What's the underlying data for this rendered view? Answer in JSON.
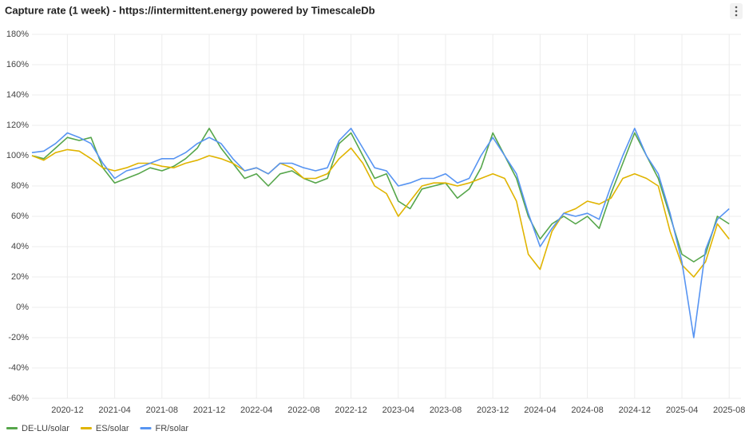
{
  "chart_data": {
    "type": "line",
    "title": "Capture rate (1 week) - https://intermittent.energy powered by TimescaleDb",
    "x": [
      "2020-09",
      "2020-10",
      "2020-11",
      "2020-12",
      "2021-01",
      "2021-02",
      "2021-03",
      "2021-04",
      "2021-05",
      "2021-06",
      "2021-07",
      "2021-08",
      "2021-09",
      "2021-10",
      "2021-11",
      "2021-12",
      "2022-01",
      "2022-02",
      "2022-03",
      "2022-04",
      "2022-05",
      "2022-06",
      "2022-07",
      "2022-08",
      "2022-09",
      "2022-10",
      "2022-11",
      "2022-12",
      "2023-01",
      "2023-02",
      "2023-03",
      "2023-04",
      "2023-05",
      "2023-06",
      "2023-07",
      "2023-08",
      "2023-09",
      "2023-10",
      "2023-11",
      "2023-12",
      "2024-01",
      "2024-02",
      "2024-03",
      "2024-04",
      "2024-05",
      "2024-06",
      "2024-07",
      "2024-08",
      "2024-09",
      "2024-10",
      "2024-11",
      "2024-12",
      "2025-01",
      "2025-02",
      "2025-03",
      "2025-04",
      "2025-05",
      "2025-06",
      "2025-07",
      "2025-08"
    ],
    "series": [
      {
        "name": "DE-LU/solar",
        "color": "#56a64b",
        "values": [
          100,
          98,
          105,
          112,
          110,
          112,
          92,
          82,
          85,
          88,
          92,
          90,
          93,
          98,
          105,
          118,
          105,
          95,
          85,
          88,
          80,
          88,
          90,
          85,
          82,
          85,
          108,
          115,
          100,
          85,
          88,
          70,
          65,
          78,
          80,
          82,
          72,
          78,
          92,
          115,
          100,
          85,
          60,
          45,
          55,
          60,
          55,
          60,
          52,
          75,
          95,
          115,
          100,
          85,
          60,
          35,
          30,
          35,
          60,
          55
        ]
      },
      {
        "name": "ES/solar",
        "color": "#e0b400",
        "values": [
          100,
          97,
          102,
          104,
          103,
          98,
          92,
          90,
          92,
          95,
          95,
          93,
          92,
          95,
          97,
          100,
          98,
          95,
          90,
          92,
          88,
          95,
          92,
          85,
          85,
          88,
          98,
          105,
          95,
          80,
          75,
          60,
          70,
          80,
          82,
          82,
          80,
          82,
          85,
          88,
          85,
          70,
          35,
          25,
          50,
          62,
          65,
          70,
          68,
          72,
          85,
          88,
          85,
          80,
          50,
          28,
          20,
          30,
          55,
          45
        ]
      },
      {
        "name": "FR/solar",
        "color": "#5794f2",
        "values": [
          102,
          103,
          108,
          115,
          112,
          108,
          95,
          85,
          90,
          92,
          95,
          98,
          98,
          102,
          108,
          112,
          108,
          98,
          90,
          92,
          88,
          95,
          95,
          92,
          90,
          92,
          110,
          118,
          105,
          92,
          90,
          80,
          82,
          85,
          85,
          88,
          82,
          85,
          100,
          112,
          100,
          88,
          62,
          40,
          52,
          62,
          60,
          62,
          58,
          80,
          100,
          118,
          100,
          88,
          62,
          30,
          -20,
          38,
          58,
          65
        ]
      }
    ],
    "xlim": [
      "2020-09",
      "2025-09"
    ],
    "xticks": [
      "2020-12",
      "2021-04",
      "2021-08",
      "2021-12",
      "2022-04",
      "2022-08",
      "2022-12",
      "2023-04",
      "2023-08",
      "2023-12",
      "2024-04",
      "2024-08",
      "2024-12",
      "2025-04",
      "2025-08"
    ],
    "ylim": [
      -60,
      180
    ],
    "yticks": [
      {
        "value": -60,
        "label": "-60%"
      },
      {
        "value": -40,
        "label": "-40%"
      },
      {
        "value": -20,
        "label": "-20%"
      },
      {
        "value": 0,
        "label": "0%"
      },
      {
        "value": 20,
        "label": "20%"
      },
      {
        "value": 40,
        "label": "40%"
      },
      {
        "value": 60,
        "label": "60%"
      },
      {
        "value": 80,
        "label": "80%"
      },
      {
        "value": 100,
        "label": "100%"
      },
      {
        "value": 120,
        "label": "120%"
      },
      {
        "value": 140,
        "label": "140%"
      },
      {
        "value": 160,
        "label": "160%"
      },
      {
        "value": 180,
        "label": "180%"
      }
    ],
    "grid": true
  }
}
